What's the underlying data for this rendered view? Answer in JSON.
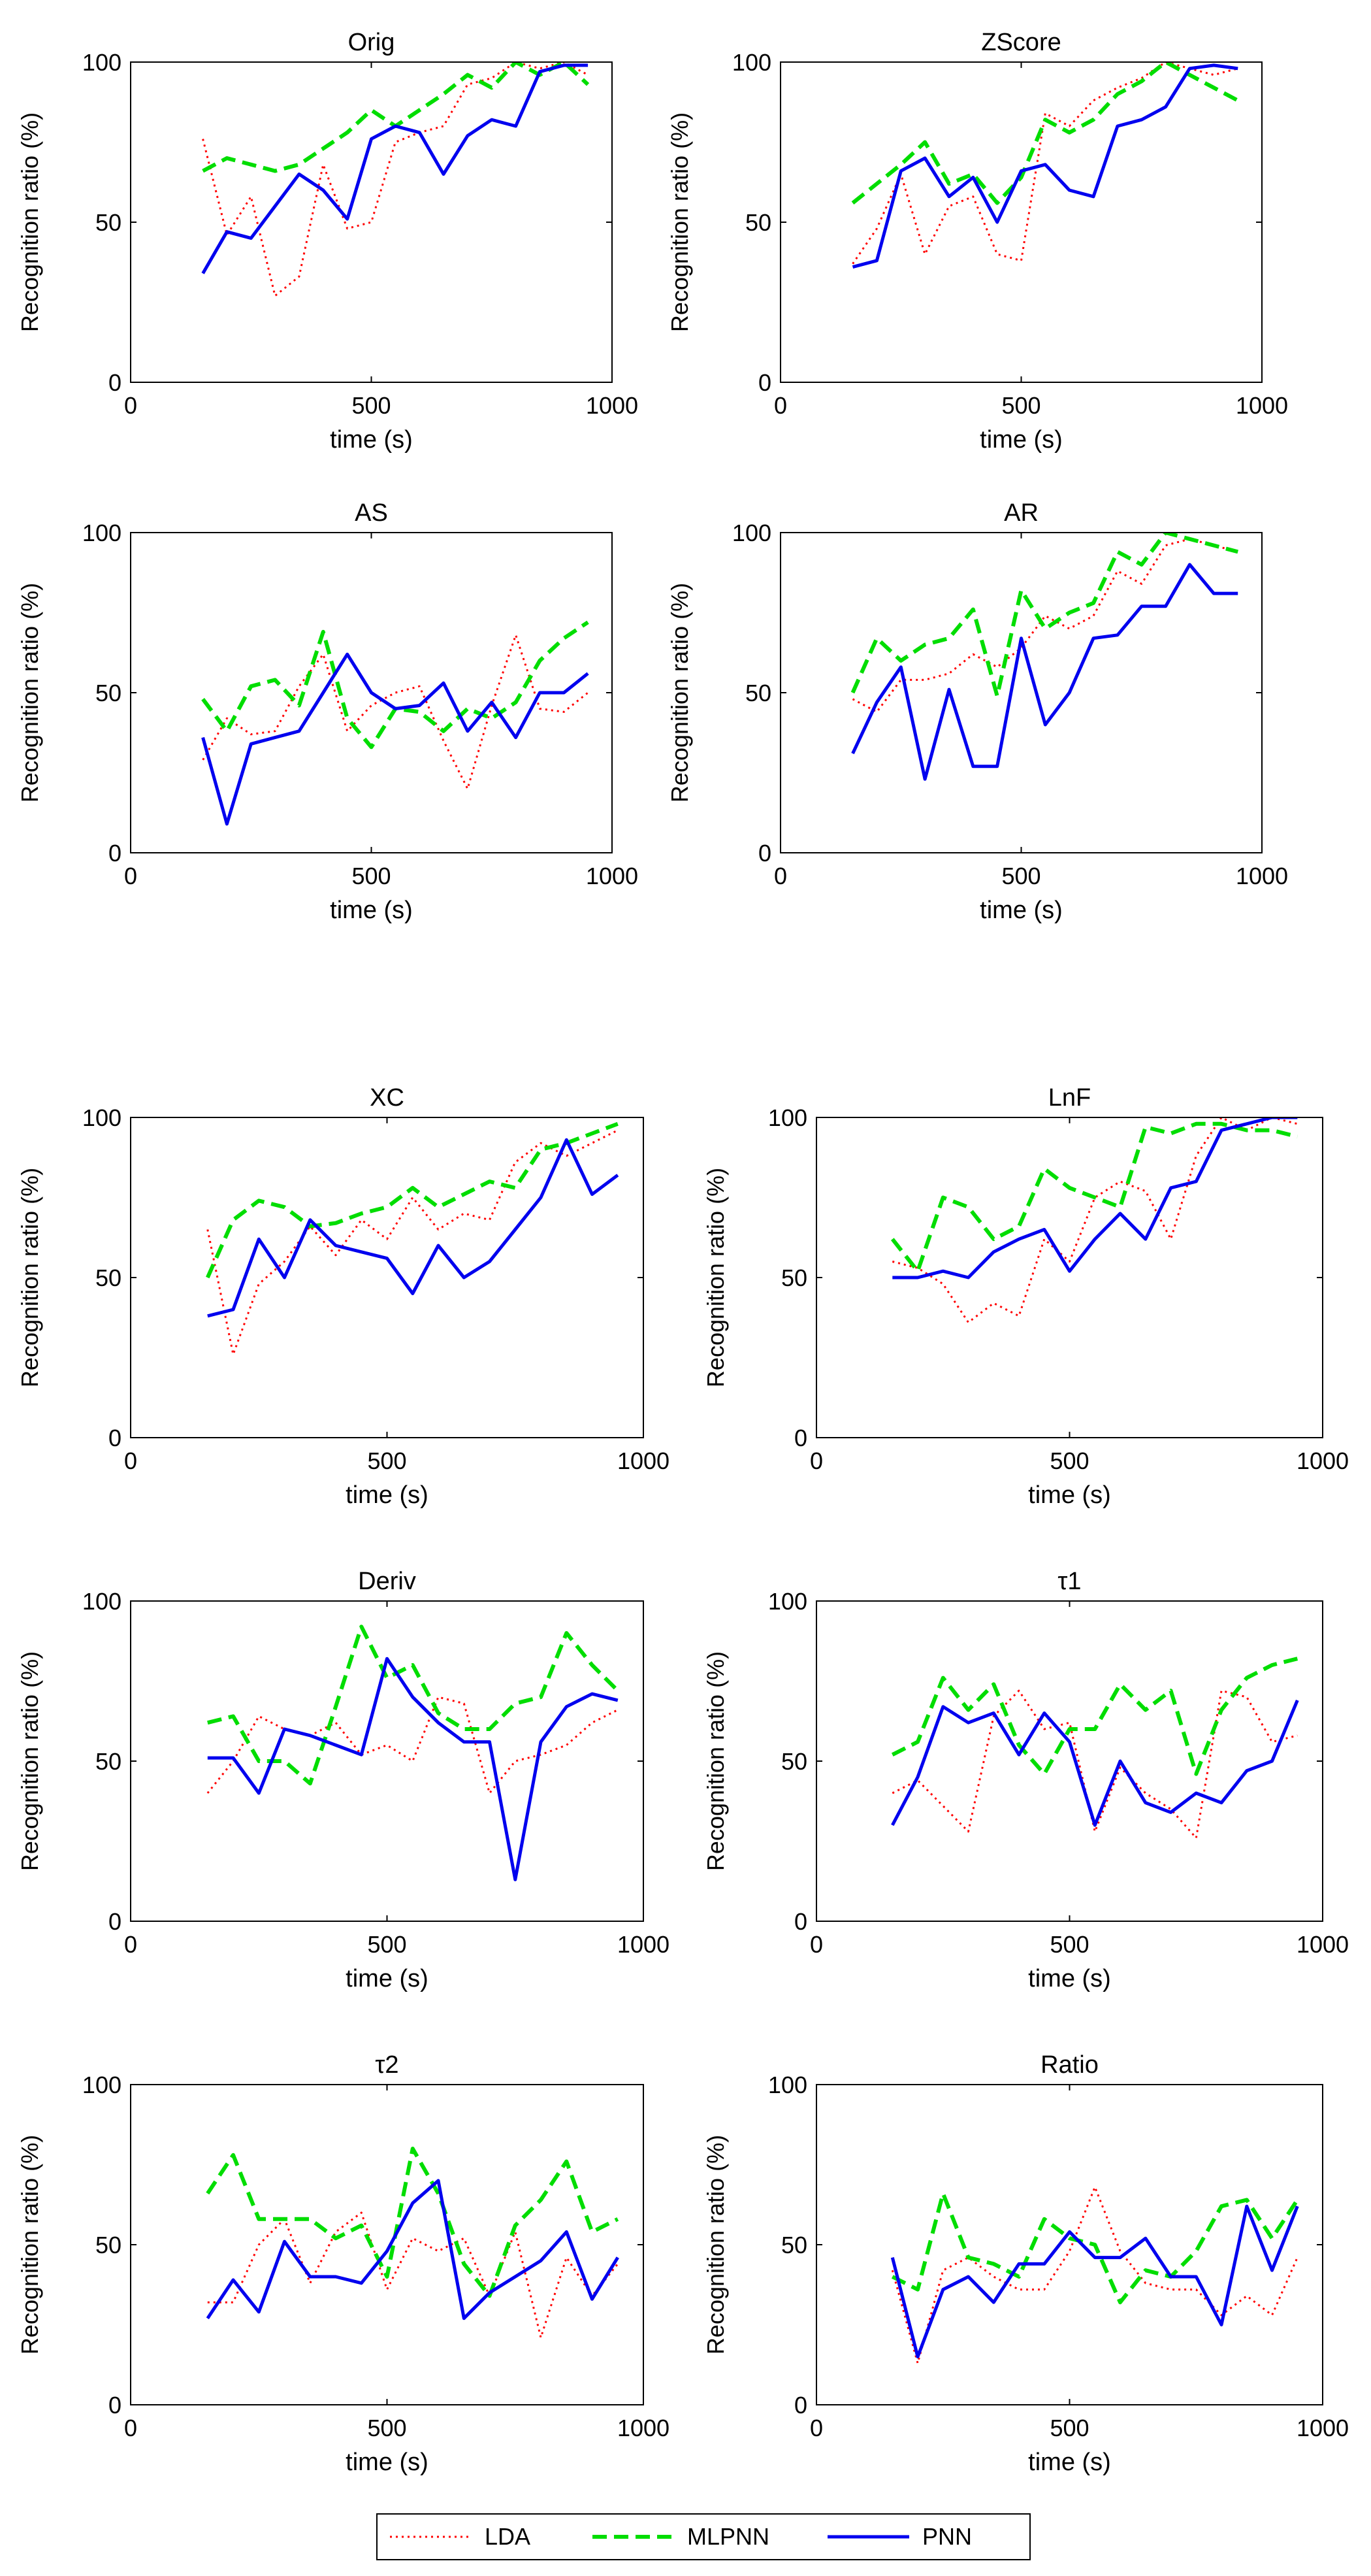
{
  "x": [
    150,
    200,
    250,
    300,
    350,
    400,
    450,
    500,
    550,
    600,
    650,
    700,
    750,
    800,
    850,
    900,
    950
  ],
  "colors": {
    "LDA": "#ff0000",
    "MLPNN": "#00dd00",
    "PNN": "#0000ee"
  },
  "legend": [
    "LDA",
    "MLPNN",
    "PNN"
  ],
  "chart_data": [
    {
      "type": "line",
      "title": "Orig",
      "xlabel": "time (s)",
      "ylabel": "Recognition ratio (%)",
      "xlim": [
        0,
        1000
      ],
      "ylim": [
        0,
        100
      ],
      "xticks": [
        "0",
        "500",
        "1000"
      ],
      "yticks": [
        "0",
        "50",
        "100"
      ],
      "series": [
        {
          "name": "LDA",
          "values": [
            76,
            46,
            58,
            27,
            33,
            68,
            48,
            50,
            75,
            78,
            80,
            93,
            95,
            100,
            98,
            100,
            96
          ]
        },
        {
          "name": "MLPNN",
          "values": [
            66,
            70,
            68,
            66,
            68,
            73,
            78,
            85,
            80,
            85,
            90,
            96,
            92,
            100,
            96,
            100,
            93
          ]
        },
        {
          "name": "PNN",
          "values": [
            34,
            47,
            45,
            55,
            65,
            60,
            51,
            76,
            80,
            78,
            65,
            77,
            82,
            80,
            97,
            99,
            99
          ]
        }
      ]
    },
    {
      "type": "line",
      "title": "ZScore",
      "xlabel": "time (s)",
      "ylabel": "Recognition ratio (%)",
      "xlim": [
        0,
        1000
      ],
      "ylim": [
        0,
        100
      ],
      "xticks": [
        "0",
        "500",
        "1000"
      ],
      "yticks": [
        "0",
        "50",
        "100"
      ],
      "series": [
        {
          "name": "LDA",
          "values": [
            37,
            48,
            65,
            40,
            55,
            58,
            40,
            38,
            84,
            80,
            88,
            92,
            95,
            100,
            98,
            96,
            98
          ]
        },
        {
          "name": "MLPNN",
          "values": [
            56,
            62,
            68,
            75,
            62,
            65,
            56,
            64,
            82,
            78,
            82,
            90,
            94,
            100,
            96,
            92,
            88
          ]
        },
        {
          "name": "PNN",
          "values": [
            36,
            38,
            66,
            70,
            58,
            64,
            50,
            66,
            68,
            60,
            58,
            80,
            82,
            86,
            98,
            99,
            98
          ]
        }
      ]
    },
    {
      "type": "line",
      "title": "AS",
      "xlabel": "time (s)",
      "ylabel": "Recognition ratio (%)",
      "xlim": [
        0,
        1000
      ],
      "ylim": [
        0,
        100
      ],
      "xticks": [
        "0",
        "500",
        "1000"
      ],
      "yticks": [
        "0",
        "50",
        "100"
      ],
      "series": [
        {
          "name": "LDA",
          "values": [
            29,
            42,
            37,
            38,
            52,
            62,
            38,
            46,
            50,
            52,
            35,
            20,
            46,
            68,
            45,
            44,
            50
          ]
        },
        {
          "name": "MLPNN",
          "values": [
            48,
            38,
            52,
            54,
            46,
            69,
            42,
            33,
            45,
            44,
            38,
            45,
            42,
            47,
            60,
            67,
            72
          ]
        },
        {
          "name": "PNN",
          "values": [
            36,
            9,
            34,
            36,
            38,
            50,
            62,
            50,
            45,
            46,
            53,
            38,
            47,
            36,
            50,
            50,
            56
          ]
        }
      ]
    },
    {
      "type": "line",
      "title": "AR",
      "xlabel": "time (s)",
      "ylabel": "Recognition ratio (%)",
      "xlim": [
        0,
        1000
      ],
      "ylim": [
        0,
        100
      ],
      "xticks": [
        "0",
        "500",
        "1000"
      ],
      "yticks": [
        "0",
        "50",
        "100"
      ],
      "series": [
        {
          "name": "LDA",
          "values": [
            48,
            44,
            54,
            54,
            56,
            62,
            58,
            64,
            74,
            70,
            74,
            88,
            84,
            96,
            98,
            96,
            94
          ]
        },
        {
          "name": "MLPNN",
          "values": [
            50,
            67,
            60,
            65,
            67,
            76,
            49,
            82,
            70,
            75,
            78,
            94,
            90,
            100,
            98,
            96,
            94
          ]
        },
        {
          "name": "PNN",
          "values": [
            31,
            47,
            58,
            23,
            51,
            27,
            27,
            67,
            40,
            50,
            67,
            68,
            77,
            77,
            90,
            81,
            81
          ]
        }
      ]
    },
    {
      "type": "line",
      "title": "XC",
      "xlabel": "time (s)",
      "ylabel": "Recognition ratio (%)",
      "xlim": [
        0,
        1000
      ],
      "ylim": [
        0,
        100
      ],
      "xticks": [
        "0",
        "500",
        "1000"
      ],
      "yticks": [
        "0",
        "50",
        "100"
      ],
      "series": [
        {
          "name": "LDA",
          "values": [
            65,
            26,
            48,
            55,
            66,
            57,
            68,
            62,
            75,
            65,
            70,
            68,
            86,
            92,
            88,
            92,
            96
          ]
        },
        {
          "name": "MLPNN",
          "values": [
            50,
            68,
            74,
            72,
            66,
            67,
            70,
            72,
            78,
            72,
            76,
            80,
            78,
            90,
            92,
            95,
            98
          ]
        },
        {
          "name": "PNN",
          "values": [
            38,
            40,
            62,
            50,
            68,
            60,
            58,
            56,
            45,
            60,
            50,
            55,
            65,
            75,
            93,
            76,
            82
          ]
        }
      ]
    },
    {
      "type": "line",
      "title": "LnF",
      "xlabel": "time (s)",
      "ylabel": "Recognition ratio (%)",
      "xlim": [
        0,
        1000
      ],
      "ylim": [
        0,
        100
      ],
      "xticks": [
        "0",
        "500",
        "1000"
      ],
      "yticks": [
        "0",
        "50",
        "100"
      ],
      "series": [
        {
          "name": "LDA",
          "values": [
            55,
            53,
            48,
            36,
            42,
            38,
            62,
            55,
            75,
            80,
            77,
            62,
            88,
            100,
            96,
            100,
            98
          ]
        },
        {
          "name": "MLPNN",
          "values": [
            62,
            52,
            75,
            72,
            62,
            66,
            84,
            78,
            75,
            72,
            97,
            95,
            98,
            98,
            96,
            96,
            94
          ]
        },
        {
          "name": "PNN",
          "values": [
            50,
            50,
            52,
            50,
            58,
            62,
            65,
            52,
            62,
            70,
            62,
            78,
            80,
            96,
            98,
            100,
            100
          ]
        }
      ]
    },
    {
      "type": "line",
      "title": "Deriv",
      "xlabel": "time (s)",
      "ylabel": "Recognition ratio (%)",
      "xlim": [
        0,
        1000
      ],
      "ylim": [
        0,
        100
      ],
      "xticks": [
        "0",
        "500",
        "1000"
      ],
      "yticks": [
        "0",
        "50",
        "100"
      ],
      "series": [
        {
          "name": "LDA",
          "values": [
            40,
            50,
            64,
            60,
            58,
            62,
            52,
            55,
            50,
            70,
            68,
            40,
            50,
            52,
            55,
            62,
            66
          ]
        },
        {
          "name": "MLPNN",
          "values": [
            62,
            64,
            50,
            50,
            43,
            67,
            92,
            76,
            80,
            65,
            60,
            60,
            68,
            70,
            90,
            80,
            72
          ]
        },
        {
          "name": "PNN",
          "values": [
            51,
            51,
            40,
            60,
            58,
            55,
            52,
            82,
            70,
            62,
            56,
            56,
            13,
            56,
            67,
            71,
            69
          ]
        }
      ]
    },
    {
      "type": "line",
      "title": "τ1",
      "xlabel": "time (s)",
      "ylabel": "Recognition ratio (%)",
      "xlim": [
        0,
        1000
      ],
      "ylim": [
        0,
        100
      ],
      "xticks": [
        "0",
        "500",
        "1000"
      ],
      "yticks": [
        "0",
        "50",
        "100"
      ],
      "series": [
        {
          "name": "LDA",
          "values": [
            40,
            44,
            36,
            28,
            64,
            72,
            60,
            62,
            28,
            48,
            40,
            35,
            26,
            72,
            70,
            56,
            58
          ]
        },
        {
          "name": "MLPNN",
          "values": [
            52,
            56,
            76,
            66,
            74,
            55,
            46,
            60,
            60,
            74,
            66,
            72,
            46,
            66,
            76,
            80,
            82
          ]
        },
        {
          "name": "PNN",
          "values": [
            30,
            45,
            67,
            62,
            65,
            52,
            65,
            56,
            30,
            50,
            37,
            34,
            40,
            37,
            47,
            50,
            69
          ]
        }
      ]
    },
    {
      "type": "line",
      "title": "τ2",
      "xlabel": "time (s)",
      "ylabel": "Recognition ratio (%)",
      "xlim": [
        0,
        1000
      ],
      "ylim": [
        0,
        100
      ],
      "xticks": [
        "0",
        "500",
        "1000"
      ],
      "yticks": [
        "0",
        "50",
        "100"
      ],
      "series": [
        {
          "name": "LDA",
          "values": [
            32,
            32,
            50,
            58,
            38,
            54,
            60,
            36,
            52,
            48,
            52,
            34,
            54,
            21,
            46,
            34,
            44
          ]
        },
        {
          "name": "MLPNN",
          "values": [
            66,
            78,
            58,
            58,
            58,
            52,
            56,
            40,
            80,
            66,
            44,
            34,
            56,
            64,
            76,
            54,
            58
          ]
        },
        {
          "name": "PNN",
          "values": [
            27,
            39,
            29,
            51,
            40,
            40,
            38,
            48,
            63,
            70,
            27,
            35,
            40,
            45,
            54,
            33,
            46
          ]
        }
      ]
    },
    {
      "type": "line",
      "title": "Ratio",
      "xlabel": "time (s)",
      "ylabel": "Recognition ratio (%)",
      "xlim": [
        0,
        1000
      ],
      "ylim": [
        0,
        100
      ],
      "xticks": [
        "0",
        "500",
        "1000"
      ],
      "yticks": [
        "0",
        "50",
        "100"
      ],
      "series": [
        {
          "name": "LDA",
          "values": [
            42,
            13,
            42,
            46,
            40,
            36,
            36,
            48,
            68,
            48,
            38,
            36,
            36,
            28,
            34,
            28,
            46
          ]
        },
        {
          "name": "MLPNN",
          "values": [
            40,
            36,
            66,
            46,
            44,
            40,
            58,
            52,
            50,
            32,
            42,
            40,
            48,
            62,
            64,
            52,
            64
          ]
        },
        {
          "name": "PNN",
          "values": [
            46,
            15,
            36,
            40,
            32,
            44,
            44,
            54,
            46,
            46,
            52,
            40,
            40,
            25,
            62,
            42,
            62
          ]
        }
      ]
    }
  ]
}
